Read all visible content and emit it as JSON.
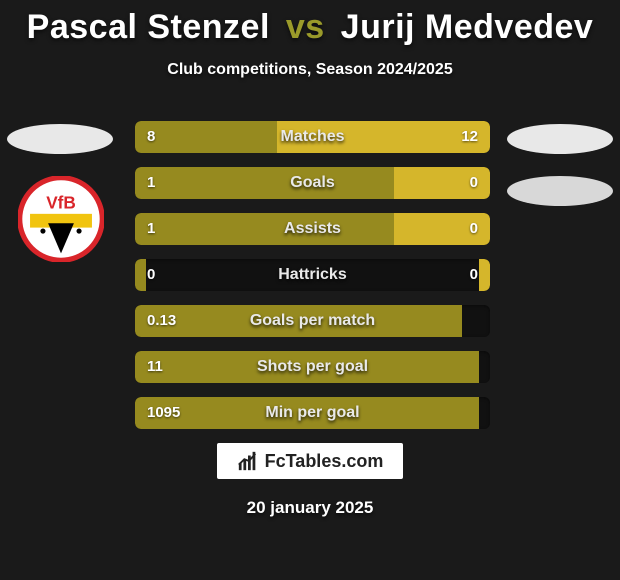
{
  "header": {
    "player1": "Pascal Stenzel",
    "vs": "vs",
    "player2": "Jurij Medvedev"
  },
  "subtitle": "Club competitions, Season 2024/2025",
  "colors": {
    "p1_bar": "#968a1f",
    "p2_bar": "#d5b62b",
    "background": "#1a1a1a"
  },
  "bars": [
    {
      "label": "Matches",
      "left_val": "8",
      "right_val": "12",
      "left_pct": 40,
      "right_pct": 60
    },
    {
      "label": "Goals",
      "left_val": "1",
      "right_val": "0",
      "left_pct": 73,
      "right_pct": 27
    },
    {
      "label": "Assists",
      "left_val": "1",
      "right_val": "0",
      "left_pct": 73,
      "right_pct": 27
    },
    {
      "label": "Hattricks",
      "left_val": "0",
      "right_val": "0",
      "left_pct": 3,
      "right_pct": 3
    },
    {
      "label": "Goals per match",
      "left_val": "0.13",
      "right_val": "",
      "left_pct": 92,
      "right_pct": 0
    },
    {
      "label": "Shots per goal",
      "left_val": "11",
      "right_val": "",
      "left_pct": 97,
      "right_pct": 0
    },
    {
      "label": "Min per goal",
      "left_val": "1095",
      "right_val": "",
      "left_pct": 97,
      "right_pct": 0
    }
  ],
  "watermark": {
    "text": "FcTables.com"
  },
  "date": "20 january 2025",
  "badge": {
    "ring_color": "#d9252a",
    "inner_bg": "#ffffff",
    "stripe_color": "#f1c40f",
    "text": "VfB"
  }
}
